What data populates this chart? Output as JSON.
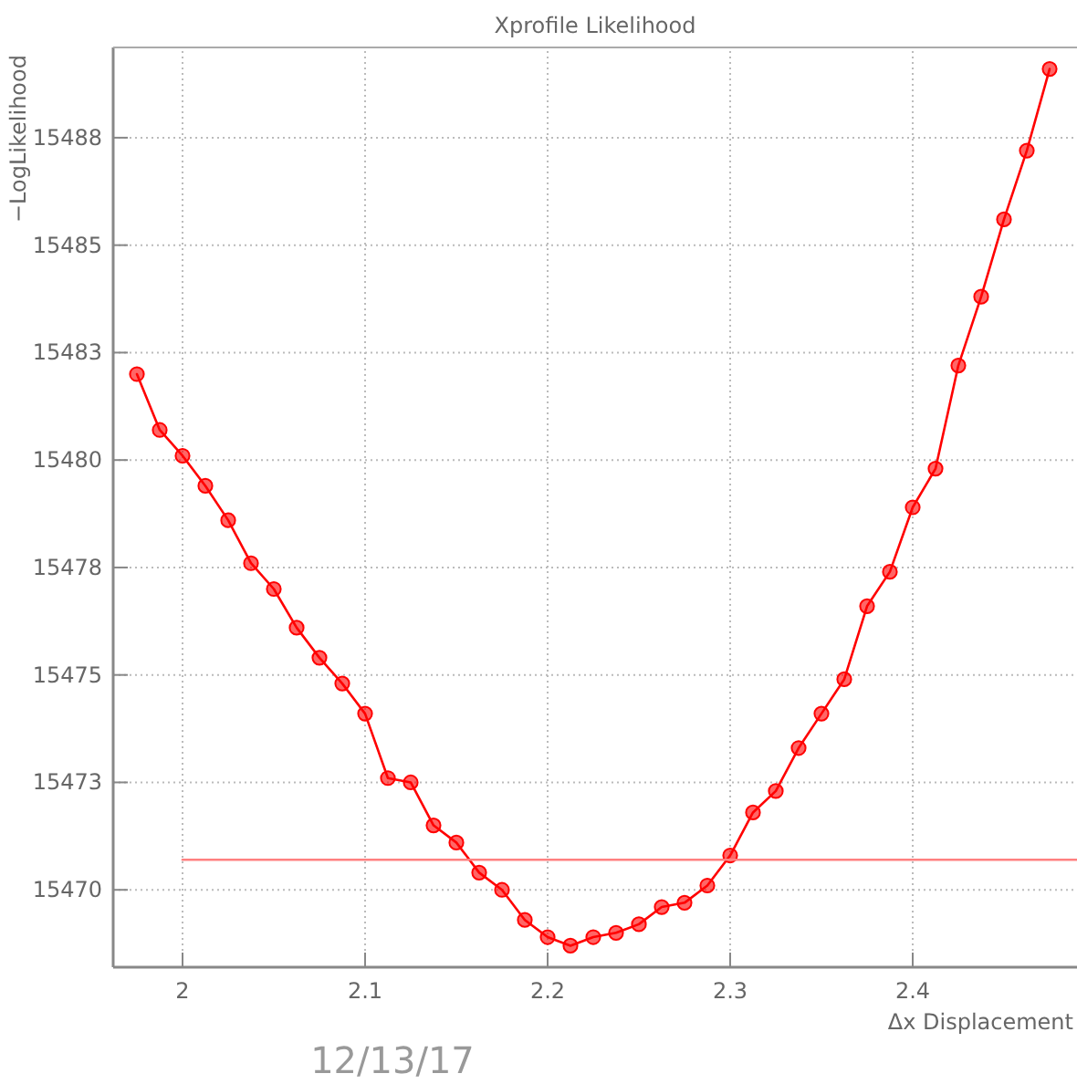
{
  "chart_data": {
    "type": "line",
    "title": "Xprofile Likelihood",
    "xlabel": "Δx Displacement",
    "ylabel": "−LogLikelihood",
    "annotations": [
      "12/13/17"
    ],
    "xlim": [
      1.962,
      2.49
    ],
    "xticks": [
      2,
      2.1,
      2.2,
      2.3,
      2.4
    ],
    "ylim": [
      15468.2,
      15489.6
    ],
    "yticks": [
      15470,
      {
        "value": 15472.5,
        "label": "15473"
      },
      15475,
      {
        "value": 15477.5,
        "label": "15478"
      },
      15480,
      {
        "value": 15482.5,
        "label": "15483"
      },
      15485,
      {
        "value": 15487.5,
        "label": "15488"
      }
    ],
    "grid": true,
    "series": [
      {
        "color": "#ff0000",
        "marker": "circle",
        "line_style": "solid",
        "x": [
          1.975,
          1.9875,
          2.0,
          2.0125,
          2.025,
          2.0375,
          2.05,
          2.0625,
          2.075,
          2.0875,
          2.1,
          2.1125,
          2.125,
          2.1375,
          2.15,
          2.1625,
          2.175,
          2.1875,
          2.2,
          2.2125,
          2.225,
          2.2375,
          2.25,
          2.2625,
          2.275,
          2.2875,
          2.3,
          2.3125,
          2.325,
          2.3375,
          2.35,
          2.3625,
          2.375,
          2.3875,
          2.4,
          2.4125,
          2.425,
          2.4375,
          2.45,
          2.4625,
          2.475
        ],
        "values": [
          15482.0,
          15480.7,
          15480.1,
          15479.4,
          15478.6,
          15477.6,
          15477.0,
          15476.1,
          15475.4,
          15474.8,
          15474.1,
          15472.6,
          15472.5,
          15471.5,
          15471.1,
          15470.4,
          15470.0,
          15469.3,
          15468.9,
          15468.7,
          15468.9,
          15469.0,
          15469.2,
          15469.6,
          15469.7,
          15470.1,
          15470.8,
          15471.8,
          15472.3,
          15473.3,
          15474.1,
          15474.9,
          15476.6,
          15477.4,
          15478.9,
          15479.8,
          15482.2,
          15483.8,
          15485.6,
          15487.2,
          15489.1
        ]
      },
      {
        "color": "#ff8080",
        "marker": "none",
        "line_style": "solid",
        "x": [
          2.0,
          2.49
        ],
        "values": [
          15470.7,
          15470.7
        ]
      }
    ]
  }
}
